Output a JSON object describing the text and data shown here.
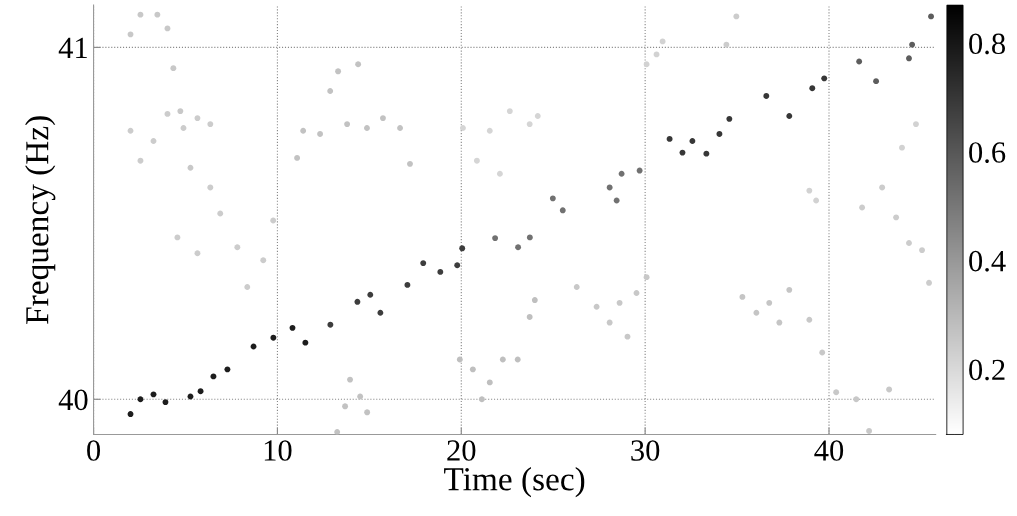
{
  "chart_data": {
    "type": "scatter",
    "xlabel": "Time (sec)",
    "ylabel": "Frequency (Hz)",
    "xlim": [
      0,
      45.8
    ],
    "ylim": [
      39.9,
      41.12
    ],
    "xticks": [
      0,
      10,
      20,
      30,
      40
    ],
    "yticks": [
      40,
      41
    ],
    "grid": true,
    "marker": "circle",
    "clim": [
      0.08,
      0.87
    ],
    "cticks": [
      0.2,
      0.4,
      0.6,
      0.8
    ],
    "series": [
      {
        "x": [
          2.01,
          2.55,
          3.26,
          3.91,
          5.27,
          5.82,
          6.52,
          7.28,
          8.7,
          9.78,
          10.82,
          11.52
        ],
        "values": [
          39.958,
          40.0,
          40.014,
          39.992,
          40.008,
          40.023,
          40.065,
          40.085,
          40.15,
          40.175,
          40.203,
          40.161
        ],
        "cvalues": [
          0.78,
          0.78,
          0.78,
          0.78,
          0.78,
          0.78,
          0.78,
          0.78,
          0.78,
          0.78,
          0.78,
          0.78
        ]
      },
      {
        "x": [
          12.88,
          14.35,
          15.05,
          15.6,
          17.07,
          17.93,
          18.86,
          19.78,
          20.05
        ],
        "values": [
          40.212,
          40.277,
          40.297,
          40.246,
          40.325,
          40.387,
          40.362,
          40.381,
          40.429
        ],
        "cvalues": [
          0.68,
          0.68,
          0.68,
          0.68,
          0.68,
          0.68,
          0.68,
          0.68,
          0.68
        ]
      },
      {
        "x": [
          21.84,
          23.09,
          23.73,
          24.98,
          25.52,
          28.07,
          28.45,
          28.72,
          29.7
        ],
        "values": [
          40.458,
          40.432,
          40.46,
          40.571,
          40.537,
          40.602,
          40.565,
          40.641,
          40.65
        ],
        "cvalues": [
          0.52,
          0.52,
          0.52,
          0.52,
          0.52,
          0.52,
          0.52,
          0.52,
          0.52
        ]
      },
      {
        "x": [
          31.33,
          32.03,
          32.57,
          33.33,
          34.04,
          34.58,
          36.59,
          37.84,
          39.09,
          39.74
        ],
        "values": [
          40.74,
          40.701,
          40.734,
          40.698,
          40.754,
          40.797,
          40.862,
          40.805,
          40.884,
          40.912
        ],
        "cvalues": [
          0.7,
          0.7,
          0.7,
          0.7,
          0.7,
          0.7,
          0.7,
          0.7,
          0.7,
          0.7
        ]
      },
      {
        "x": [
          41.64,
          42.56,
          44.35,
          44.52,
          45.55
        ],
        "values": [
          40.96,
          40.904,
          40.969,
          41.008,
          41.088
        ],
        "cvalues": [
          0.58,
          0.58,
          0.58,
          0.58,
          0.58
        ]
      },
      {
        "x": [
          2.01,
          2.55,
          3.47,
          4.02,
          4.34,
          4.72,
          5.27
        ],
        "values": [
          41.037,
          41.093,
          41.093,
          41.054,
          40.941,
          40.819,
          40.658
        ],
        "cvalues": [
          0.25,
          0.25,
          0.25,
          0.25,
          0.25,
          0.25,
          0.25
        ]
      },
      {
        "x": [
          2.01,
          2.55,
          3.26,
          4.02,
          4.89,
          5.65,
          6.35
        ],
        "values": [
          40.763,
          40.678,
          40.734,
          40.811,
          40.771,
          40.799,
          40.782
        ],
        "cvalues": [
          0.24,
          0.24,
          0.24,
          0.24,
          0.24,
          0.24,
          0.24
        ]
      },
      {
        "x": [
          4.56,
          5.65,
          6.35,
          6.89,
          7.82,
          8.36,
          9.23,
          9.77
        ],
        "values": [
          40.46,
          40.415,
          40.602,
          40.528,
          40.432,
          40.319,
          40.395,
          40.508
        ],
        "cvalues": [
          0.24,
          0.24,
          0.24,
          0.24,
          0.24,
          0.24,
          0.24,
          0.24
        ]
      },
      {
        "x": [
          11.07,
          11.4,
          12.32,
          12.87,
          13.3,
          13.79,
          14.39,
          14.87,
          15.74,
          16.67,
          17.21
        ],
        "values": [
          40.686,
          40.763,
          40.754,
          40.876,
          40.932,
          40.782,
          40.952,
          40.771,
          40.799,
          40.771,
          40.669
        ],
        "cvalues": [
          0.27,
          0.27,
          0.27,
          0.27,
          0.27,
          0.27,
          0.27,
          0.27,
          0.27,
          0.27,
          0.27
        ]
      },
      {
        "x": [
          13.25,
          13.68,
          13.95,
          14.5,
          14.88
        ],
        "values": [
          39.907,
          39.98,
          40.056,
          40.008,
          39.963
        ],
        "cvalues": [
          0.27,
          0.27,
          0.27,
          0.27,
          0.27
        ]
      },
      {
        "x": [
          19.92,
          20.63,
          21.12,
          21.55,
          22.26,
          23.07,
          23.72,
          24.0
        ],
        "values": [
          40.113,
          40.085,
          40.0,
          40.048,
          40.113,
          40.113,
          40.234,
          40.282
        ],
        "cvalues": [
          0.28,
          0.28,
          0.28,
          0.28,
          0.28,
          0.28,
          0.28,
          0.28
        ]
      },
      {
        "x": [
          20.09,
          20.85,
          21.55,
          22.1,
          22.64,
          23.72,
          24.16
        ],
        "values": [
          40.771,
          40.678,
          40.763,
          40.641,
          40.819,
          40.782,
          40.805
        ],
        "cvalues": [
          0.21,
          0.21,
          0.21,
          0.21,
          0.21,
          0.21,
          0.21
        ]
      },
      {
        "x": [
          26.28,
          27.36,
          28.07,
          28.61,
          29.04,
          29.53,
          30.08
        ],
        "values": [
          40.319,
          40.263,
          40.218,
          40.274,
          40.178,
          40.302,
          40.347
        ],
        "cvalues": [
          0.25,
          0.25,
          0.25,
          0.25,
          0.25,
          0.25,
          0.25
        ]
      },
      {
        "x": [
          30.08,
          30.62,
          30.95
        ],
        "values": [
          40.952,
          40.98,
          41.017
        ],
        "cvalues": [
          0.22,
          0.22,
          0.22
        ]
      },
      {
        "x": [
          34.42,
          34.96
        ],
        "values": [
          41.008,
          41.088
        ],
        "cvalues": [
          0.24,
          0.24
        ]
      },
      {
        "x": [
          35.29,
          36.05,
          36.75,
          37.3,
          37.84
        ],
        "values": [
          40.291,
          40.246,
          40.274,
          40.218,
          40.311
        ],
        "cvalues": [
          0.26,
          0.26,
          0.26,
          0.26,
          0.26
        ]
      },
      {
        "x": [
          38.93,
          39.63,
          40.39,
          41.48,
          42.18,
          43.27
        ],
        "values": [
          40.226,
          40.133,
          40.02,
          40.0,
          39.91,
          40.028
        ],
        "cvalues": [
          0.25,
          0.25,
          0.25,
          0.25,
          0.25,
          0.25
        ]
      },
      {
        "x": [
          38.93,
          39.3
        ],
        "values": [
          40.593,
          40.565
        ],
        "cvalues": [
          0.22,
          0.22
        ]
      },
      {
        "x": [
          41.8,
          42.89,
          43.65,
          44.35,
          45.06,
          45.44
        ],
        "values": [
          40.545,
          40.602,
          40.517,
          40.444,
          40.424,
          40.331
        ],
        "cvalues": [
          0.24,
          0.24,
          0.24,
          0.24,
          0.24,
          0.24
        ]
      },
      {
        "x": [
          43.97,
          44.73
        ],
        "values": [
          40.715,
          40.782
        ],
        "cvalues": [
          0.22,
          0.22
        ]
      }
    ]
  }
}
